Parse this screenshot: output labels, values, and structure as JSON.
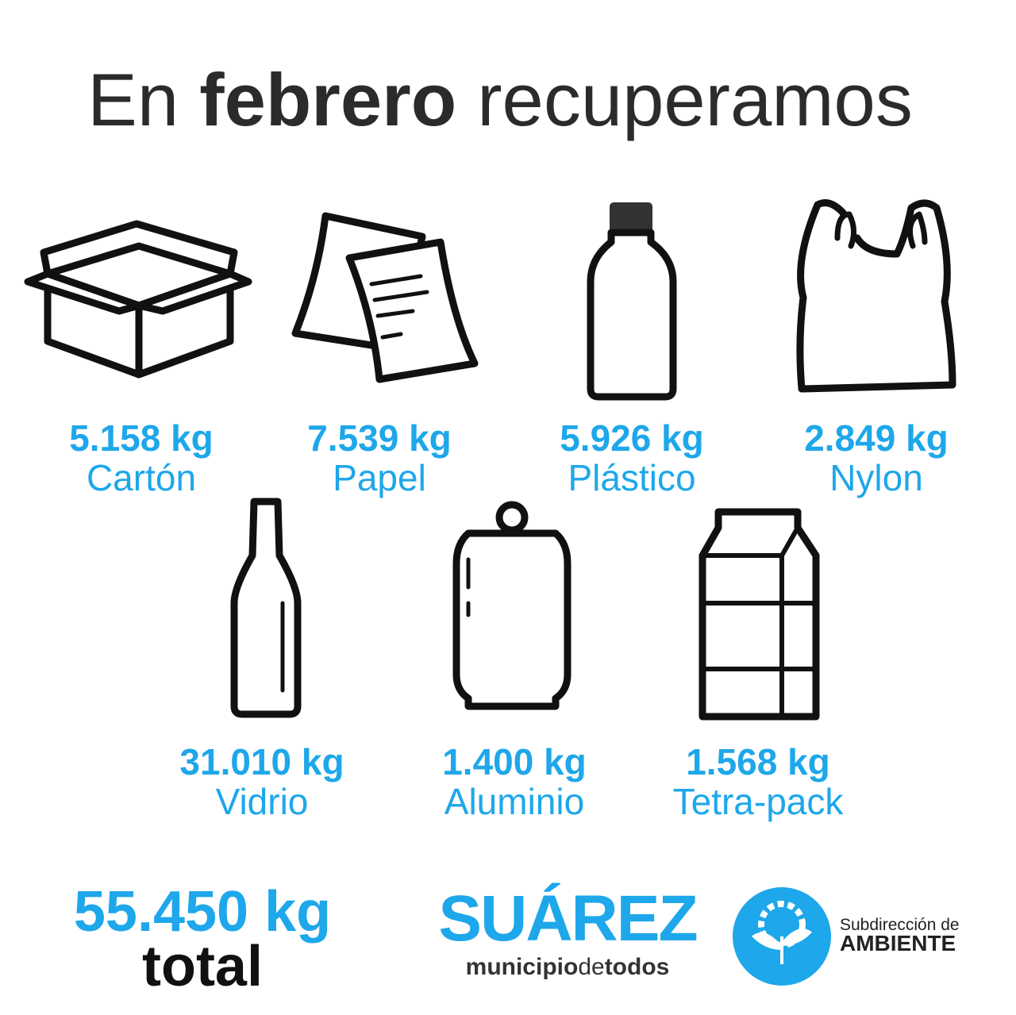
{
  "title": {
    "pre": "En",
    "bold": "febrero",
    "post": "recuperamos"
  },
  "items": [
    {
      "amount": "5.158 kg",
      "label": "Cartón"
    },
    {
      "amount": "7.539 kg",
      "label": "Papel"
    },
    {
      "amount": "5.926 kg",
      "label": "Plástico"
    },
    {
      "amount": "2.849 kg",
      "label": "Nylon"
    },
    {
      "amount": "31.010 kg",
      "label": "Vidrio"
    },
    {
      "amount": "1.400 kg",
      "label": "Aluminio"
    },
    {
      "amount": "1.568 kg",
      "label": "Tetra-pack"
    }
  ],
  "total": {
    "amount": "55.450 kg",
    "label": "total"
  },
  "logo": {
    "name": "SUÁREZ",
    "tag1": "municipio",
    "tag2": "de",
    "tag3": "todos"
  },
  "ambiente": {
    "line1": "Subdirección de",
    "line2": "AMBIENTE"
  }
}
